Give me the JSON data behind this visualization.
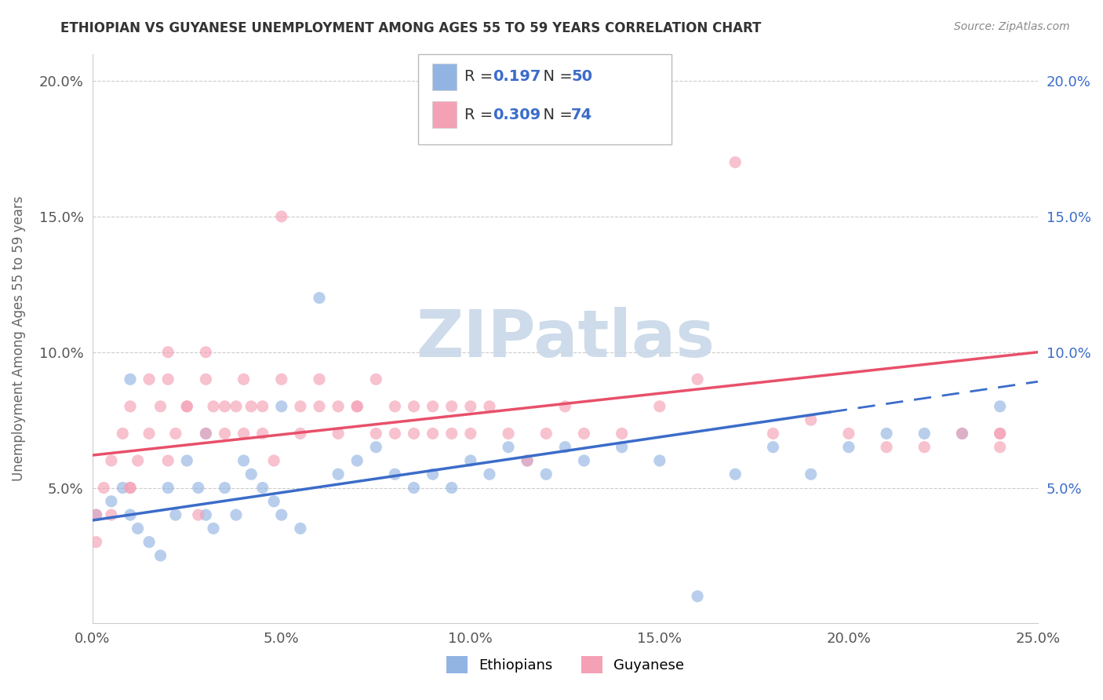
{
  "title": "ETHIOPIAN VS GUYANESE UNEMPLOYMENT AMONG AGES 55 TO 59 YEARS CORRELATION CHART",
  "source": "Source: ZipAtlas.com",
  "ylabel": "Unemployment Among Ages 55 to 59 years",
  "xlim": [
    0.0,
    0.25
  ],
  "ylim": [
    0.0,
    0.21
  ],
  "xticks": [
    0.0,
    0.05,
    0.1,
    0.15,
    0.2,
    0.25
  ],
  "yticks": [
    0.05,
    0.1,
    0.15,
    0.2
  ],
  "xtick_labels": [
    "0.0%",
    "5.0%",
    "10.0%",
    "15.0%",
    "20.0%",
    "25.0%"
  ],
  "ytick_labels": [
    "5.0%",
    "10.0%",
    "15.0%",
    "20.0%"
  ],
  "R_ethiopian": 0.197,
  "N_ethiopian": 50,
  "R_guyanese": 0.309,
  "N_guyanese": 74,
  "ethiopian_color": "#92b4e3",
  "guyanese_color": "#f4a0b5",
  "ethiopian_line_color": "#3b6cc9",
  "guyanese_line_color": "#e8506a",
  "watermark": "ZIPatlas",
  "watermark_color": "#c8d8e8",
  "ethiopian_x": [
    0.001,
    0.005,
    0.008,
    0.01,
    0.012,
    0.015,
    0.018,
    0.02,
    0.022,
    0.025,
    0.028,
    0.03,
    0.032,
    0.035,
    0.038,
    0.04,
    0.042,
    0.045,
    0.048,
    0.05,
    0.055,
    0.06,
    0.065,
    0.07,
    0.075,
    0.08,
    0.085,
    0.09,
    0.095,
    0.1,
    0.105,
    0.11,
    0.115,
    0.12,
    0.125,
    0.13,
    0.14,
    0.15,
    0.16,
    0.17,
    0.18,
    0.19,
    0.2,
    0.21,
    0.22,
    0.23,
    0.01,
    0.03,
    0.05,
    0.24
  ],
  "ethiopian_y": [
    0.04,
    0.045,
    0.05,
    0.04,
    0.035,
    0.03,
    0.025,
    0.05,
    0.04,
    0.06,
    0.05,
    0.04,
    0.035,
    0.05,
    0.04,
    0.06,
    0.055,
    0.05,
    0.045,
    0.04,
    0.035,
    0.12,
    0.055,
    0.06,
    0.065,
    0.055,
    0.05,
    0.055,
    0.05,
    0.06,
    0.055,
    0.065,
    0.06,
    0.055,
    0.065,
    0.06,
    0.065,
    0.06,
    0.01,
    0.055,
    0.065,
    0.055,
    0.065,
    0.07,
    0.07,
    0.07,
    0.09,
    0.07,
    0.08,
    0.08
  ],
  "guyanese_x": [
    0.001,
    0.003,
    0.005,
    0.008,
    0.01,
    0.012,
    0.015,
    0.018,
    0.02,
    0.022,
    0.025,
    0.028,
    0.03,
    0.032,
    0.035,
    0.038,
    0.04,
    0.042,
    0.045,
    0.048,
    0.05,
    0.055,
    0.06,
    0.065,
    0.07,
    0.075,
    0.08,
    0.085,
    0.09,
    0.095,
    0.1,
    0.105,
    0.11,
    0.115,
    0.12,
    0.125,
    0.13,
    0.14,
    0.15,
    0.16,
    0.17,
    0.18,
    0.19,
    0.2,
    0.21,
    0.22,
    0.23,
    0.001,
    0.005,
    0.01,
    0.015,
    0.02,
    0.025,
    0.03,
    0.035,
    0.04,
    0.045,
    0.05,
    0.055,
    0.06,
    0.065,
    0.07,
    0.075,
    0.08,
    0.085,
    0.09,
    0.095,
    0.1,
    0.24,
    0.24,
    0.01,
    0.02,
    0.03,
    0.24
  ],
  "guyanese_y": [
    0.04,
    0.05,
    0.06,
    0.07,
    0.05,
    0.06,
    0.07,
    0.08,
    0.06,
    0.07,
    0.08,
    0.04,
    0.07,
    0.08,
    0.07,
    0.08,
    0.07,
    0.08,
    0.07,
    0.06,
    0.15,
    0.07,
    0.08,
    0.07,
    0.08,
    0.07,
    0.07,
    0.08,
    0.07,
    0.08,
    0.07,
    0.08,
    0.07,
    0.06,
    0.07,
    0.08,
    0.07,
    0.07,
    0.08,
    0.09,
    0.17,
    0.07,
    0.075,
    0.07,
    0.065,
    0.065,
    0.07,
    0.03,
    0.04,
    0.08,
    0.09,
    0.09,
    0.08,
    0.09,
    0.08,
    0.09,
    0.08,
    0.09,
    0.08,
    0.09,
    0.08,
    0.08,
    0.09,
    0.08,
    0.07,
    0.08,
    0.07,
    0.08,
    0.07,
    0.065,
    0.05,
    0.1,
    0.1,
    0.07
  ]
}
